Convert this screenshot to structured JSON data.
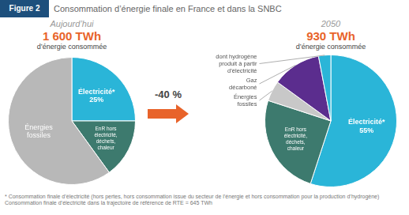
{
  "title": "Consommation d’énergie finale en France et dans la SNBC",
  "annotations": [
    "Figure 2",
    "-40 %",
    "* Consommation finale d’électricité (hors pertes, hors consommation issue du secteur de l’énergie et hors consommation pour la production d’hydrogène)",
    "  Consommation finale d’électricité dans la trajectoire de référence de RTE = 645 TWh"
  ],
  "chart_data": [
    {
      "type": "pie",
      "title": "Aujourd’hui",
      "subtitle": "1 600 TWh",
      "annotations": [
        "d’énergie consommée"
      ],
      "categories": [
        "Électricité*",
        "EnR hors\nélectricité,\ndéchets,\nchaleur",
        "Énergies\nfossiles"
      ],
      "values": [
        25,
        15,
        60
      ],
      "value_labels": [
        "25%",
        null,
        null
      ],
      "colors": [
        "#2ab5d8",
        "#3d7a6e",
        "#b8b8b8"
      ]
    },
    {
      "type": "pie",
      "title": "2050",
      "subtitle": "930 TWh",
      "annotations": [
        "d’énergie consommée"
      ],
      "categories": [
        "Électricité*",
        "EnR hors\nélectricité,\ndéchets,\nchaleur",
        "Énergies\nfossiles",
        "Gaz\ndécarboné",
        "dont hydrogène\nproduit à partir\nd’électricité"
      ],
      "values": [
        55,
        25,
        5,
        12,
        3
      ],
      "value_labels": [
        "55%",
        null,
        null,
        null,
        null
      ],
      "colors": [
        "#2ab5d8",
        "#3d7a6e",
        "#c8c8c8",
        "#5b2d8e",
        "#2ab5d8"
      ]
    }
  ]
}
